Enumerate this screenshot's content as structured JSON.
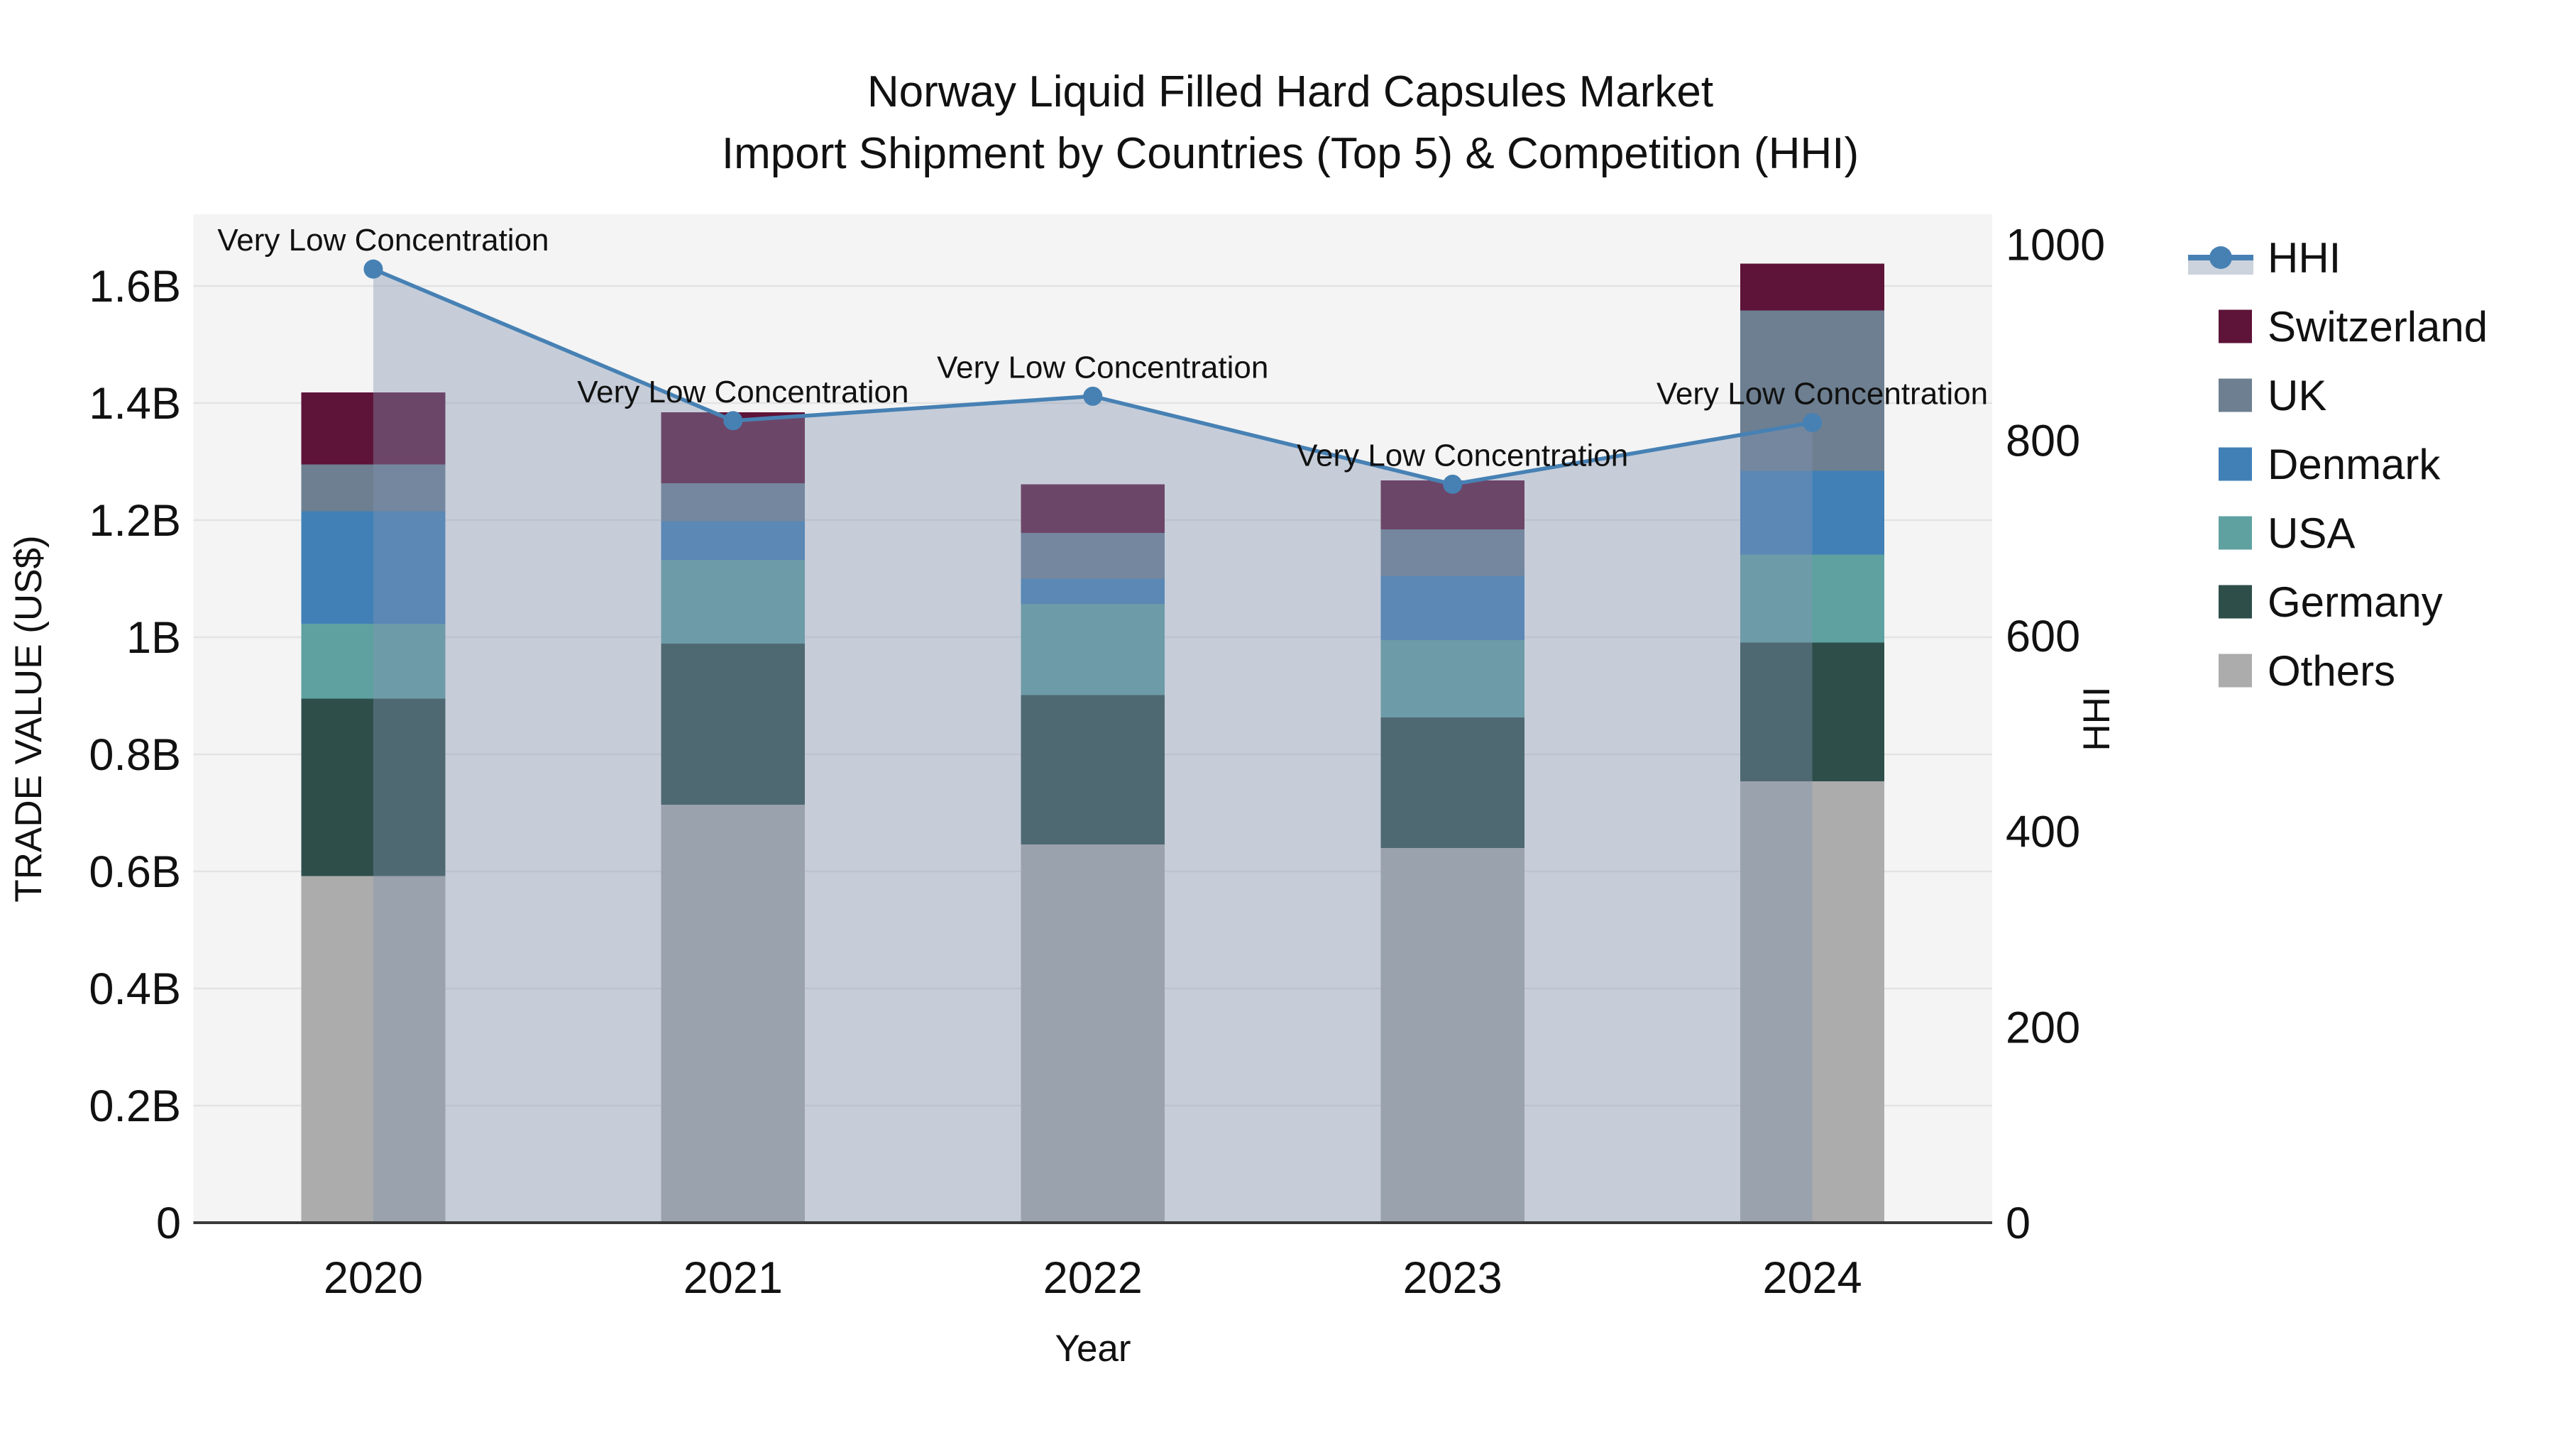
{
  "title": {
    "line1": "Norway Liquid Filled Hard Capsules Market",
    "line2": "Import Shipment by Countries (Top 5) & Competition (HHI)"
  },
  "axes": {
    "y_left": {
      "label": "TRADE VALUE (US$)",
      "tick_labels": [
        "0",
        "0.2B",
        "0.4B",
        "0.6B",
        "0.8B",
        "1B",
        "1.2B",
        "1.4B",
        "1.6B"
      ],
      "tick_values": [
        0,
        0.2,
        0.4,
        0.6,
        0.8,
        1.0,
        1.2,
        1.4,
        1.6
      ]
    },
    "y_right": {
      "label": "HHI",
      "tick_labels": [
        "0",
        "200",
        "400",
        "600",
        "800",
        "1000"
      ],
      "tick_values": [
        0,
        200,
        400,
        600,
        800,
        1000
      ]
    },
    "x": {
      "label": "Year",
      "categories": [
        "2020",
        "2021",
        "2022",
        "2023",
        "2024"
      ]
    }
  },
  "legend": {
    "order": [
      "HHI",
      "Switzerland",
      "UK",
      "Denmark",
      "USA",
      "Germany",
      "Others"
    ],
    "hhi_band_color": "#ccd3dc"
  },
  "colors": {
    "plot_background": "#f4f4f4",
    "gridline": "#e3e3e3",
    "bottom_spine": "#3a3a3a",
    "text": "#111111"
  },
  "chart_data": {
    "type": "combo: stacked bar (left axis) + line with area fill (right axis)",
    "title": "Norway Liquid Filled Hard Capsules Market — Import Shipment by Countries (Top 5) & Competition (HHI)",
    "categories": [
      "2020",
      "2021",
      "2022",
      "2023",
      "2024"
    ],
    "unit": "billions USD",
    "series": [
      {
        "name": "Others",
        "color": "#abacab",
        "values": [
          0.592,
          0.714,
          0.646,
          0.64,
          0.754
        ]
      },
      {
        "name": "Germany",
        "color": "#2e4e4a",
        "values": [
          0.303,
          0.275,
          0.255,
          0.223,
          0.237
        ]
      },
      {
        "name": "USA",
        "color": "#5fa1a1",
        "values": [
          0.128,
          0.143,
          0.156,
          0.132,
          0.15
        ]
      },
      {
        "name": "Denmark",
        "color": "#4180b7",
        "values": [
          0.192,
          0.066,
          0.043,
          0.11,
          0.143
        ]
      },
      {
        "name": "UK",
        "color": "#6d7f91",
        "values": [
          0.08,
          0.065,
          0.078,
          0.079,
          0.274
        ]
      },
      {
        "name": "Switzerland",
        "color": "#5e1338",
        "values": [
          0.123,
          0.121,
          0.083,
          0.084,
          0.08
        ]
      }
    ],
    "bar_totals": [
      1.418,
      1.384,
      1.261,
      1.268,
      1.638
    ],
    "line_series": {
      "name": "HHI",
      "axis": "right",
      "color": "#4781b4",
      "area_fill": "rgba(130,148,177,0.40)",
      "values": [
        975,
        820,
        845,
        755,
        818
      ],
      "point_labels": [
        "Very Low Concentration",
        "Very Low Concentration",
        "Very Low Concentration",
        "Very Low Concentration",
        "Very Low Concentration"
      ]
    },
    "xlabel": "Year",
    "ylabel": "TRADE VALUE (US$)",
    "y2label": "HHI",
    "ylim": [
      0,
      1.7224
    ],
    "y2lim": [
      0,
      1031
    ],
    "grid": true,
    "legend_position": "right"
  }
}
